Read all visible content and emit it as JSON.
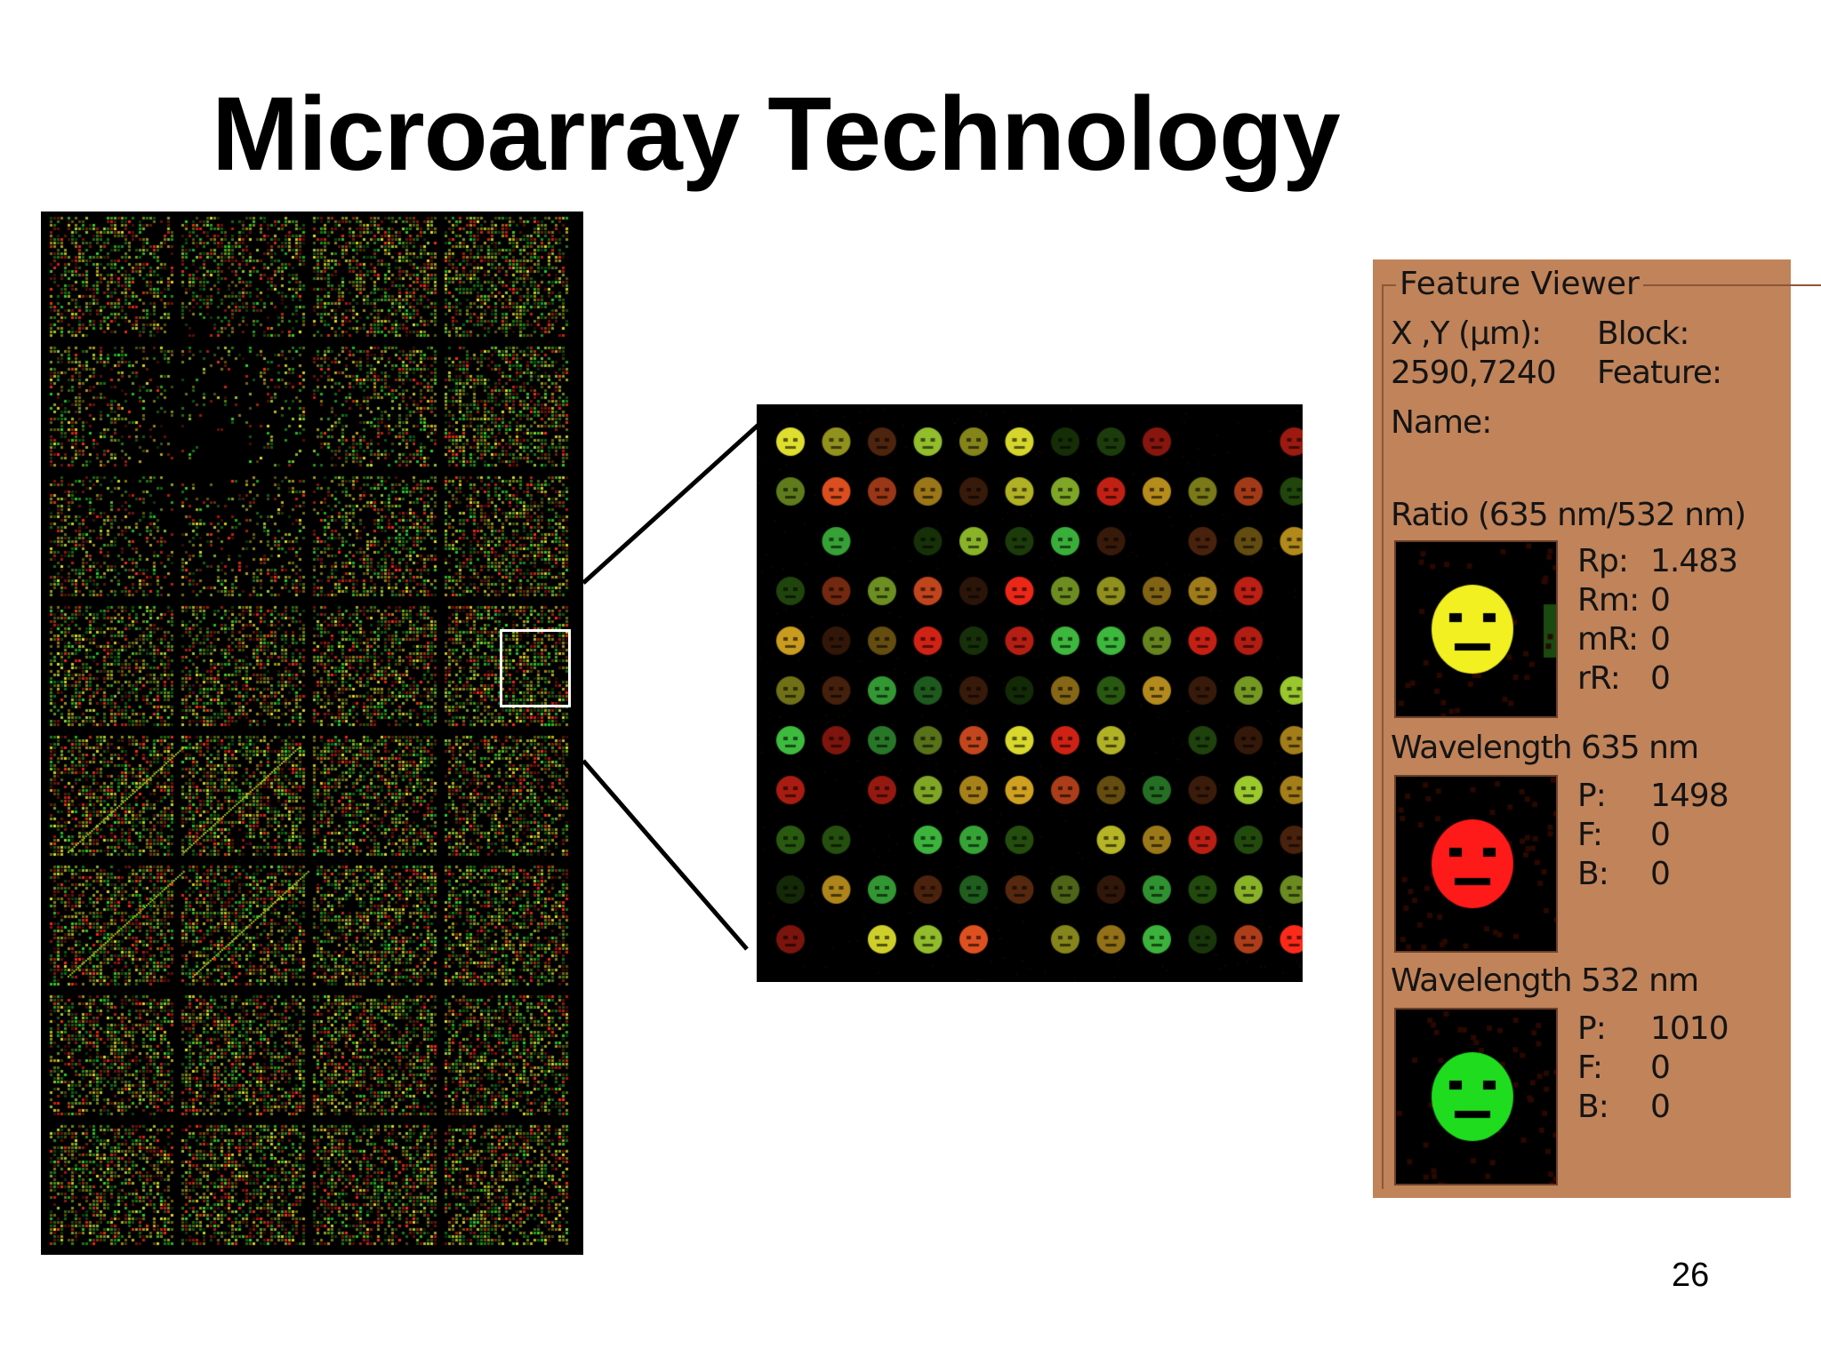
{
  "title": "Microarray Technology",
  "page_number": "26",
  "feature_viewer": {
    "title": "Feature Viewer",
    "xy_label": "X ,Y (µm):",
    "xy_value": "2590,7240",
    "block_label": "Block:",
    "feature_label": "Feature:",
    "name_label": "Name:",
    "ratio": {
      "heading": "Ratio (635 nm/532 nm)",
      "rows": [
        {
          "label": "Rp:",
          "value": "1.483"
        },
        {
          "label": "Rm:",
          "value": "0"
        },
        {
          "label": "mR:",
          "value": "0"
        },
        {
          "label": "rR:",
          "value": "0"
        }
      ]
    },
    "w635": {
      "heading": "Wavelength 635 nm",
      "rows": [
        {
          "label": "P:",
          "value": "1498"
        },
        {
          "label": "F:",
          "value": "0"
        },
        {
          "label": "B:",
          "value": "0"
        }
      ]
    },
    "w532": {
      "heading": "Wavelength 532 nm",
      "rows": [
        {
          "label": "P:",
          "value": "1010"
        },
        {
          "label": "F:",
          "value": "0"
        },
        {
          "label": "B:",
          "value": "0"
        }
      ]
    }
  },
  "colors": {
    "panel_bg": "#c0835a",
    "spot_red": "#ff1a1a",
    "spot_green": "#1fdc1f",
    "spot_yellow": "#f0f020"
  }
}
